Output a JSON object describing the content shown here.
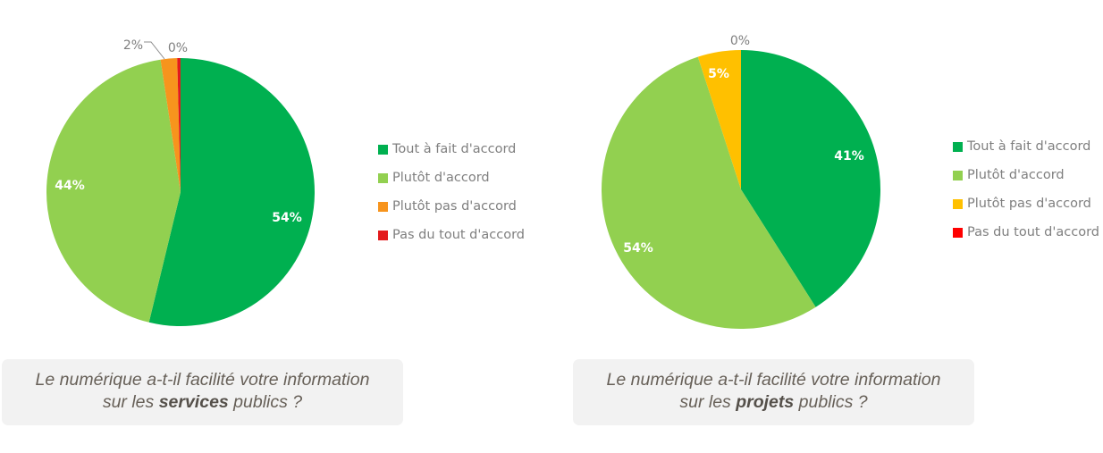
{
  "chart_data": [
    {
      "type": "pie",
      "title": "Le numérique a-t-il facilité votre information sur les services publics ?",
      "categories": [
        "Tout à fait d'accord",
        "Plutôt d'accord",
        "Plutôt pas d'accord",
        "Pas du tout d'accord"
      ],
      "values": [
        54,
        44,
        2,
        0.4
      ],
      "labels": [
        "54%",
        "44%",
        "2%",
        "0%"
      ],
      "colors": [
        "#00B050",
        "#92D050",
        "#F7941D",
        "#E31A1C"
      ],
      "legend_position": "right",
      "start_angle": 0,
      "direction": "clockwise"
    },
    {
      "type": "pie",
      "title": "Le numérique a-t-il facilité votre information sur les projets publics ?",
      "categories": [
        "Tout à fait d'accord",
        "Plutôt d'accord",
        "Plutôt pas d'accord",
        "Pas du tout d'accord"
      ],
      "values": [
        41,
        54,
        5,
        0
      ],
      "labels": [
        "41%",
        "54%",
        "5%",
        "0%"
      ],
      "colors": [
        "#00B050",
        "#92D050",
        "#FFC000",
        "#FF0000"
      ],
      "legend_position": "right",
      "start_angle": 0,
      "direction": "clockwise"
    }
  ],
  "charts": [
    {
      "caption": {
        "line1": "Le numérique a-t-il facilité votre information",
        "line2_prefix": "sur les ",
        "line2_bold": "services",
        "line2_suffix": " publics ?"
      },
      "legend": [
        {
          "label": "Tout à fait d'accord",
          "color": "#00B050"
        },
        {
          "label": "Plutôt d'accord",
          "color": "#92D050"
        },
        {
          "label": "Plutôt pas d'accord",
          "color": "#F7941D"
        },
        {
          "label": "Pas du tout d'accord",
          "color": "#E31A1C"
        }
      ]
    },
    {
      "caption": {
        "line1": "Le numérique a-t-il facilité votre information",
        "line2_prefix": "sur les ",
        "line2_bold": "projets",
        "line2_suffix": " publics ?"
      },
      "legend": [
        {
          "label": "Tout à fait d'accord",
          "color": "#00B050"
        },
        {
          "label": "Plutôt d'accord",
          "color": "#92D050"
        },
        {
          "label": "Plutôt pas d'accord",
          "color": "#FFC000"
        },
        {
          "label": "Pas du tout d'accord",
          "color": "#FF0000"
        }
      ]
    }
  ]
}
